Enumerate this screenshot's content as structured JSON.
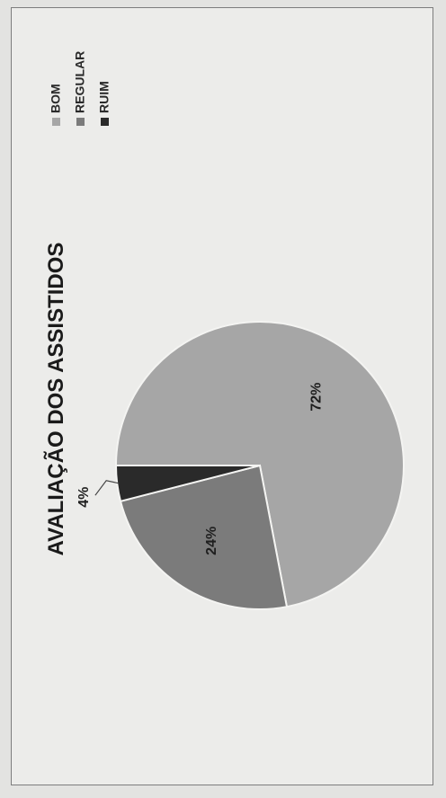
{
  "chart_data": {
    "type": "pie",
    "title": "AVALIAÇÃO DOS ASSISTIDOS",
    "categories": [
      "BOM",
      "REGULAR",
      "RUIM"
    ],
    "values": [
      72,
      24,
      4
    ],
    "labels": [
      "72%",
      "24%",
      "4%"
    ],
    "colors": {
      "BOM": "#a6a6a6",
      "REGULAR": "#7b7b7b",
      "RUIM": "#2a2a2a"
    },
    "legend": {
      "placement": "right",
      "entries": [
        "BOM",
        "REGULAR",
        "RUIM"
      ]
    }
  }
}
